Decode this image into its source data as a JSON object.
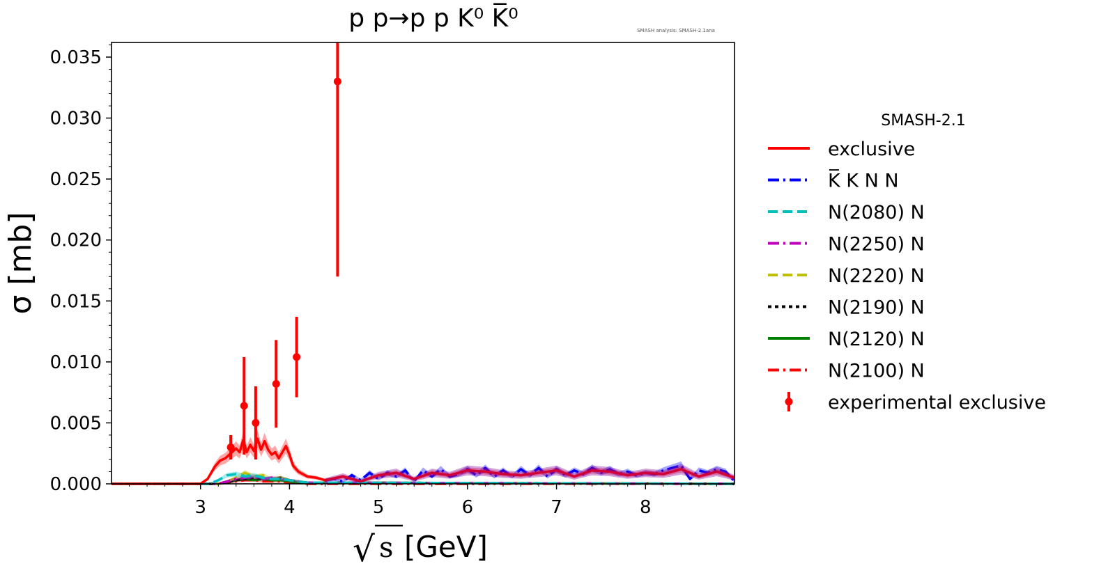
{
  "chart_data": {
    "type": "line",
    "title": "p p→p p K⁰ K̅⁰",
    "watermark": "SMASH analysis: SMASH-2.1ana",
    "xlabel": "√s [GeV]",
    "xlabel_radical": "√",
    "xlabel_symbol": "s",
    "xlabel_unit": "[GeV]",
    "ylabel": "σ [mb]",
    "xlim": [
      2.0,
      9.0
    ],
    "ylim": [
      0.0,
      0.0362
    ],
    "x_ticks": [
      3,
      4,
      5,
      6,
      7,
      8
    ],
    "x_tick_labels": [
      "3",
      "4",
      "5",
      "6",
      "7",
      "8"
    ],
    "y_ticks": [
      0.0,
      0.005,
      0.01,
      0.015,
      0.02,
      0.025,
      0.03,
      0.035
    ],
    "y_tick_labels": [
      "0.000",
      "0.005",
      "0.010",
      "0.015",
      "0.020",
      "0.025",
      "0.030",
      "0.035"
    ],
    "legend_title": "SMASH-2.1",
    "legend_position": "right, outside plot",
    "series": [
      {
        "name": "exclusive",
        "color": "#ff0000",
        "style": "solid",
        "x": [
          2.0,
          3.0,
          3.08,
          3.16,
          3.22,
          3.28,
          3.34,
          3.4,
          3.44,
          3.48,
          3.52,
          3.56,
          3.6,
          3.64,
          3.68,
          3.72,
          3.76,
          3.8,
          3.84,
          3.88,
          3.92,
          3.96,
          4.0,
          4.04,
          4.1,
          4.2,
          4.3,
          4.4,
          4.6,
          4.8,
          5.0,
          5.2,
          5.4,
          5.6,
          5.8,
          6.0,
          6.2,
          6.4,
          6.6,
          6.8,
          7.0,
          7.2,
          7.4,
          7.6,
          7.8,
          8.0,
          8.2,
          8.4,
          8.6,
          8.8,
          9.0
        ],
        "values": [
          0.0,
          0.0,
          0.0004,
          0.0014,
          0.0019,
          0.0021,
          0.0025,
          0.0029,
          0.0026,
          0.0036,
          0.0026,
          0.0032,
          0.0027,
          0.0037,
          0.0028,
          0.0035,
          0.0028,
          0.0024,
          0.0026,
          0.0021,
          0.0026,
          0.0031,
          0.0024,
          0.0015,
          0.001,
          0.0006,
          0.0005,
          0.0003,
          0.0006,
          0.0002,
          0.0007,
          0.0009,
          0.0004,
          0.0009,
          0.0007,
          0.0011,
          0.001,
          0.0008,
          0.0007,
          0.0009,
          0.0011,
          0.0006,
          0.0011,
          0.001,
          0.0007,
          0.0009,
          0.0008,
          0.0012,
          0.0006,
          0.001,
          0.0005
        ]
      },
      {
        "name": "K̅ K N N",
        "color": "#0000ff",
        "style": "dashdot",
        "x": [
          4.4,
          4.5,
          4.6,
          4.7,
          4.8,
          4.9,
          5.0,
          5.1,
          5.2,
          5.3,
          5.4,
          5.5,
          5.6,
          5.7,
          5.8,
          5.9,
          6.0,
          6.1,
          6.2,
          6.3,
          6.4,
          6.5,
          6.6,
          6.7,
          6.8,
          6.9,
          7.0,
          7.1,
          7.2,
          7.3,
          7.4,
          7.5,
          7.6,
          7.7,
          7.8,
          7.9,
          8.0,
          8.1,
          8.2,
          8.3,
          8.4,
          8.5,
          8.6,
          8.7,
          8.8,
          8.9,
          9.0
        ],
        "values": [
          0.0003,
          0.0004,
          0.0002,
          0.0007,
          0.0003,
          0.0009,
          0.0004,
          0.0009,
          0.0006,
          0.0011,
          0.0002,
          0.0011,
          0.0006,
          0.0012,
          0.0006,
          0.0008,
          0.0012,
          0.0007,
          0.0013,
          0.0006,
          0.0011,
          0.0006,
          0.0012,
          0.0007,
          0.0013,
          0.0006,
          0.0012,
          0.0007,
          0.0011,
          0.0008,
          0.0013,
          0.0009,
          0.0012,
          0.0008,
          0.001,
          0.0007,
          0.0009,
          0.0008,
          0.0011,
          0.0013,
          0.0015,
          0.0004,
          0.0011,
          0.0009,
          0.0012,
          0.001,
          0.0002
        ]
      },
      {
        "name": "N(2080) N",
        "color": "#00bfbf",
        "style": "dashed",
        "x": [
          2.0,
          3.1,
          3.2,
          3.3,
          3.4,
          3.5,
          3.6,
          3.7,
          3.8,
          3.9,
          4.0,
          4.1,
          4.2,
          9.0
        ],
        "values": [
          0.0,
          0.0,
          0.0003,
          0.0007,
          0.0008,
          0.0006,
          0.0007,
          0.0005,
          0.0004,
          0.0004,
          0.0003,
          0.0002,
          0.0001,
          0.0
        ]
      },
      {
        "name": "N(2250) N",
        "color": "#bf00bf",
        "style": "dashdot",
        "x": [
          2.0,
          3.2,
          3.3,
          3.4,
          3.5,
          3.6,
          3.7,
          3.8,
          3.9,
          4.0,
          4.1,
          4.2,
          9.0
        ],
        "values": [
          0.0,
          0.0,
          0.0002,
          0.0004,
          0.0005,
          0.0006,
          0.0004,
          0.0005,
          0.0004,
          0.0003,
          0.0002,
          0.0001,
          0.0
        ]
      },
      {
        "name": "N(2220) N",
        "color": "#bfbf00",
        "style": "dashed",
        "x": [
          2.0,
          3.2,
          3.3,
          3.4,
          3.5,
          3.6,
          3.7,
          3.8,
          3.9,
          4.0,
          4.1,
          4.2,
          9.0
        ],
        "values": [
          0.0,
          0.0,
          0.0002,
          0.0005,
          0.0009,
          0.0006,
          0.0007,
          0.0004,
          0.0005,
          0.0003,
          0.0002,
          0.0001,
          0.0
        ]
      },
      {
        "name": "N(2190) N",
        "color": "#000000",
        "style": "dotted",
        "x": [
          2.0,
          3.2,
          3.3,
          3.4,
          3.5,
          3.6,
          3.7,
          3.8,
          3.9,
          4.0,
          4.1,
          4.2,
          9.0
        ],
        "values": [
          0.0,
          0.0,
          0.0001,
          0.0003,
          0.0004,
          0.0005,
          0.0004,
          0.0004,
          0.0005,
          0.0003,
          0.0002,
          0.0001,
          0.0
        ]
      },
      {
        "name": "N(2120) N",
        "color": "#008000",
        "style": "solid",
        "x": [
          2.0,
          3.2,
          3.3,
          3.4,
          3.5,
          3.6,
          3.7,
          3.8,
          3.9,
          4.0,
          4.1,
          4.2,
          9.0
        ],
        "values": [
          0.0,
          0.0,
          0.0002,
          0.0003,
          0.0004,
          0.0003,
          0.0004,
          0.0003,
          0.0003,
          0.0002,
          0.0001,
          0.0001,
          0.0
        ]
      },
      {
        "name": "N(2100) N",
        "color": "#ff0000",
        "style": "dashdot",
        "x": [
          2.0,
          3.2,
          3.3,
          3.4,
          3.5,
          3.6,
          3.7,
          3.8,
          3.9,
          4.0,
          4.1,
          4.2,
          9.0
        ],
        "values": [
          0.0,
          0.0,
          0.0001,
          0.0002,
          0.0003,
          0.0003,
          0.0002,
          0.0002,
          0.0002,
          0.0001,
          0.0001,
          0.0,
          0.0
        ]
      }
    ],
    "experimental": {
      "name": "experimental exclusive",
      "color": "#ff0000",
      "x": [
        3.34,
        3.49,
        3.62,
        3.85,
        4.08,
        4.54
      ],
      "y": [
        0.003,
        0.0064,
        0.005,
        0.0082,
        0.0104,
        0.033
      ],
      "err": [
        0.001,
        0.004,
        0.003,
        0.0036,
        0.0033,
        0.016
      ]
    }
  }
}
